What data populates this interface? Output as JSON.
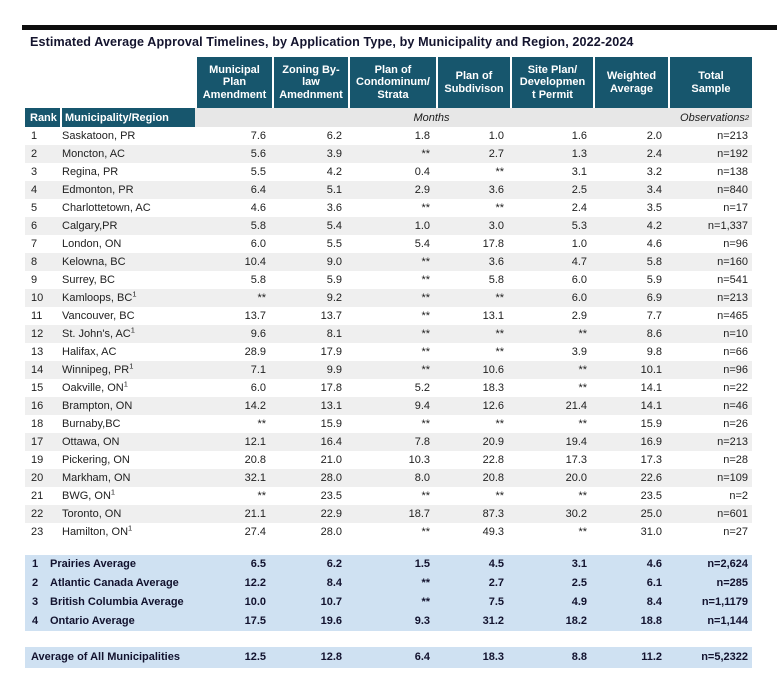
{
  "title": "Estimated Average Approval Timelines, by Application Type, by Municipality and Region, 2022-2024",
  "colors": {
    "header_teal": "#17566d",
    "row_shade": "#efefef",
    "subheader_gray": "#e7e7e7",
    "average_blue": "#cfe1f2",
    "rule_black": "#0e0e0e"
  },
  "table": {
    "corner": {
      "rank": "Rank",
      "municipality": "Municipality/Region"
    },
    "columns": [
      "Municipal\nPlan\nAmendment",
      "Zoning By-\nlaw\nAmednment",
      "Plan of\nCondominum/\nStrata",
      "Plan of\nSubdivison",
      "Site Plan/\nDevelopmen\nt Permit",
      "Weighted\nAverage",
      "Total\nSample"
    ],
    "units_label": "Months",
    "observations_label": "Observations",
    "observations_sup": "2",
    "rows": [
      {
        "rank": "1",
        "name": "Saskatoon, PR",
        "sup": "",
        "values": [
          "7.6",
          "6.2",
          "1.8",
          "1.0",
          "1.6",
          "2.0"
        ],
        "sample": "n=213"
      },
      {
        "rank": "2",
        "name": "Moncton, AC",
        "sup": "",
        "values": [
          "5.6",
          "3.9",
          "**",
          "2.7",
          "1.3",
          "2.4"
        ],
        "sample": "n=192"
      },
      {
        "rank": "3",
        "name": "Regina, PR",
        "sup": "",
        "values": [
          "5.5",
          "4.2",
          "0.4",
          "**",
          "3.1",
          "3.2"
        ],
        "sample": "n=138"
      },
      {
        "rank": "4",
        "name": "Edmonton, PR",
        "sup": "",
        "values": [
          "6.4",
          "5.1",
          "2.9",
          "3.6",
          "2.5",
          "3.4"
        ],
        "sample": "n=840"
      },
      {
        "rank": "5",
        "name": "Charlottetown, AC",
        "sup": "",
        "values": [
          "4.6",
          "3.6",
          "**",
          "**",
          "2.4",
          "3.5"
        ],
        "sample": "n=17"
      },
      {
        "rank": "6",
        "name": "Calgary,PR",
        "sup": "",
        "values": [
          "5.8",
          "5.4",
          "1.0",
          "3.0",
          "5.3",
          "4.2"
        ],
        "sample": "n=1,337"
      },
      {
        "rank": "7",
        "name": "London, ON",
        "sup": "",
        "values": [
          "6.0",
          "5.5",
          "5.4",
          "17.8",
          "1.0",
          "4.6"
        ],
        "sample": "n=96"
      },
      {
        "rank": "8",
        "name": "Kelowna, BC",
        "sup": "",
        "values": [
          "10.4",
          "9.0",
          "**",
          "3.6",
          "4.7",
          "5.8"
        ],
        "sample": "n=160"
      },
      {
        "rank": "9",
        "name": "Surrey, BC",
        "sup": "",
        "values": [
          "5.8",
          "5.9",
          "**",
          "5.8",
          "6.0",
          "5.9"
        ],
        "sample": "n=541"
      },
      {
        "rank": "10",
        "name": "Kamloops, BC",
        "sup": "1",
        "values": [
          "**",
          "9.2",
          "**",
          "**",
          "6.0",
          "6.9"
        ],
        "sample": "n=213"
      },
      {
        "rank": "11",
        "name": "Vancouver, BC",
        "sup": "",
        "values": [
          "13.7",
          "13.7",
          "**",
          "13.1",
          "2.9",
          "7.7"
        ],
        "sample": "n=465"
      },
      {
        "rank": "12",
        "name": "St. John's, AC",
        "sup": "1",
        "values": [
          "9.6",
          "8.1",
          "**",
          "**",
          "**",
          "8.6"
        ],
        "sample": "n=10"
      },
      {
        "rank": "13",
        "name": "Halifax, AC",
        "sup": "",
        "values": [
          "28.9",
          "17.9",
          "**",
          "**",
          "3.9",
          "9.8"
        ],
        "sample": "n=66"
      },
      {
        "rank": "14",
        "name": "Winnipeg, PR",
        "sup": "1",
        "values": [
          "7.1",
          "9.9",
          "**",
          "10.6",
          "**",
          "10.1"
        ],
        "sample": "n=96"
      },
      {
        "rank": "15",
        "name": "Oakville, ON",
        "sup": "1",
        "values": [
          "6.0",
          "17.8",
          "5.2",
          "18.3",
          "**",
          "14.1"
        ],
        "sample": "n=22"
      },
      {
        "rank": "16",
        "name": "Brampton, ON",
        "sup": "",
        "values": [
          "14.2",
          "13.1",
          "9.4",
          "12.6",
          "21.4",
          "14.1"
        ],
        "sample": "n=46"
      },
      {
        "rank": "18",
        "name": "Burnaby,BC",
        "sup": "",
        "values": [
          "**",
          "15.9",
          "**",
          "**",
          "**",
          "15.9"
        ],
        "sample": "n=26"
      },
      {
        "rank": "17",
        "name": "Ottawa, ON",
        "sup": "",
        "values": [
          "12.1",
          "16.4",
          "7.8",
          "20.9",
          "19.4",
          "16.9"
        ],
        "sample": "n=213"
      },
      {
        "rank": "19",
        "name": "Pickering, ON",
        "sup": "",
        "values": [
          "20.8",
          "21.0",
          "10.3",
          "22.8",
          "17.3",
          "17.3"
        ],
        "sample": "n=28"
      },
      {
        "rank": "20",
        "name": "Markham, ON",
        "sup": "",
        "values": [
          "32.1",
          "28.0",
          "8.0",
          "20.8",
          "20.0",
          "22.6"
        ],
        "sample": "n=109"
      },
      {
        "rank": "21",
        "name": "BWG, ON",
        "sup": "1",
        "values": [
          "**",
          "23.5",
          "**",
          "**",
          "**",
          "23.5"
        ],
        "sample": "n=2"
      },
      {
        "rank": "22",
        "name": "Toronto, ON",
        "sup": "",
        "values": [
          "21.1",
          "22.9",
          "18.7",
          "87.3",
          "30.2",
          "25.0"
        ],
        "sample": "n=601"
      },
      {
        "rank": "23",
        "name": "Hamilton, ON",
        "sup": "1",
        "values": [
          "27.4",
          "28.0",
          "**",
          "49.3",
          "**",
          "31.0"
        ],
        "sample": "n=27"
      }
    ],
    "region_averages": [
      {
        "rank": "1",
        "label": "Prairies Average",
        "values": [
          "6.5",
          "6.2",
          "1.5",
          "4.5",
          "3.1",
          "4.6"
        ],
        "sample": "n=2,624"
      },
      {
        "rank": "2",
        "label": "Atlantic Canada Average",
        "values": [
          "12.2",
          "8.4",
          "**",
          "2.7",
          "2.5",
          "6.1"
        ],
        "sample": "n=285"
      },
      {
        "rank": "3",
        "label": "British Columbia Average",
        "values": [
          "10.0",
          "10.7",
          "**",
          "7.5",
          "4.9",
          "8.4"
        ],
        "sample": "n=1,1179"
      },
      {
        "rank": "4",
        "label": "Ontario Average",
        "values": [
          "17.5",
          "19.6",
          "9.3",
          "31.2",
          "18.2",
          "18.8"
        ],
        "sample": "n=1,144"
      }
    ],
    "overall": {
      "label": "Average of All Municipalities",
      "values": [
        "12.5",
        "12.8",
        "6.4",
        "18.3",
        "8.8",
        "11.2"
      ],
      "sample": "n=5,2322"
    }
  }
}
